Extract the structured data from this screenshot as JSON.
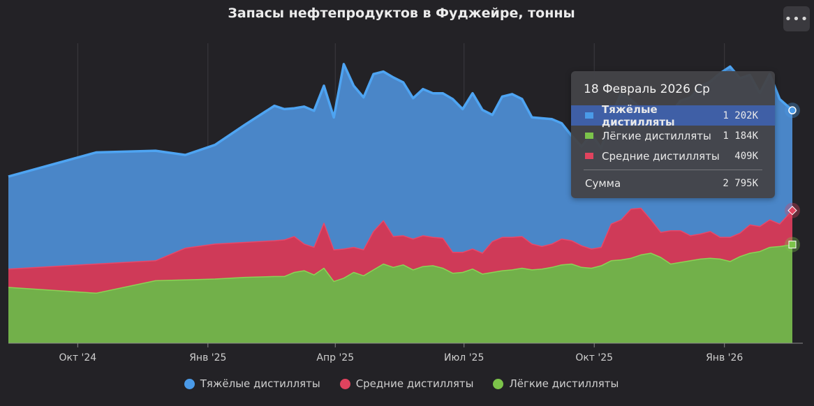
{
  "title": "Запасы нефтепродуктов в Фуджейре, тонны",
  "menu_icon": "more-icon",
  "chart_data": {
    "type": "area",
    "stacked": true,
    "title": "Запасы нефтепродуктов в Фуджейре, тонны",
    "unit": "тонны",
    "x_ticks": [
      "Окт '24",
      "Янв '25",
      "Апр '25",
      "Июл '25",
      "Окт '25",
      "Янв '26"
    ],
    "x_tick_dates": [
      "2024-10-01",
      "2025-01-01",
      "2025-04-01",
      "2025-07-01",
      "2025-10-01",
      "2026-01-01"
    ],
    "xlim": [
      "2024-08-13",
      "2026-02-18"
    ],
    "ylim": [
      0,
      3600
    ],
    "grid": "vertical",
    "legend_position": "bottom",
    "x": [
      "2024-08-13",
      "2024-10-14",
      "2024-11-25",
      "2024-12-16",
      "2025-01-06",
      "2025-01-27",
      "2025-02-17",
      "2025-02-24",
      "2025-03-03",
      "2025-03-10",
      "2025-03-17",
      "2025-03-24",
      "2025-03-31",
      "2025-04-07",
      "2025-04-14",
      "2025-04-21",
      "2025-04-28",
      "2025-05-05",
      "2025-05-12",
      "2025-05-19",
      "2025-05-26",
      "2025-06-02",
      "2025-06-09",
      "2025-06-16",
      "2025-06-23",
      "2025-06-30",
      "2025-07-07",
      "2025-07-14",
      "2025-07-21",
      "2025-07-28",
      "2025-08-04",
      "2025-08-11",
      "2025-08-18",
      "2025-08-25",
      "2025-09-01",
      "2025-09-08",
      "2025-09-15",
      "2025-09-22",
      "2025-09-29",
      "2025-10-06",
      "2025-10-13",
      "2025-10-20",
      "2025-10-27",
      "2025-11-03",
      "2025-11-10",
      "2025-11-17",
      "2025-11-24",
      "2025-12-01",
      "2025-12-08",
      "2025-12-15",
      "2025-12-22",
      "2025-12-29",
      "2026-01-05",
      "2026-01-12",
      "2026-01-19",
      "2026-01-26",
      "2026-02-02",
      "2026-02-09",
      "2026-02-18"
    ],
    "series": [
      {
        "name": "Лёгкие дистилляты",
        "color": "#7cc34a",
        "values": [
          670,
          600,
          750,
          760,
          770,
          790,
          800,
          800,
          850,
          870,
          820,
          900,
          740,
          780,
          850,
          810,
          880,
          950,
          910,
          940,
          880,
          920,
          930,
          900,
          840,
          850,
          890,
          830,
          850,
          870,
          880,
          900,
          880,
          890,
          910,
          940,
          950,
          910,
          900,
          930,
          990,
          1000,
          1020,
          1060,
          1080,
          1030,
          950,
          970,
          990,
          1010,
          1020,
          1010,
          980,
          1040,
          1080,
          1100,
          1150,
          1160,
          1184
        ]
      },
      {
        "name": "Средние дистилляты",
        "color": "#e0435e",
        "values": [
          220,
          350,
          240,
          380,
          420,
          420,
          430,
          440,
          430,
          320,
          330,
          540,
          380,
          350,
          300,
          310,
          460,
          520,
          370,
          350,
          370,
          370,
          340,
          360,
          250,
          240,
          240,
          250,
          370,
          400,
          390,
          380,
          310,
          270,
          280,
          310,
          280,
          260,
          230,
          220,
          440,
          480,
          590,
          560,
          400,
          300,
          400,
          380,
          300,
          300,
          320,
          260,
          290,
          280,
          340,
          300,
          330,
          270,
          409
        ]
      },
      {
        "name": "Тяжёлые дистилляты",
        "color": "#4a8dd0",
        "values": [
          1110,
          1340,
          1320,
          1120,
          1190,
          1410,
          1620,
          1570,
          1540,
          1650,
          1640,
          1650,
          1590,
          2220,
          1940,
          1830,
          1890,
          1790,
          1910,
          1840,
          1690,
          1760,
          1730,
          1740,
          1840,
          1720,
          1870,
          1720,
          1520,
          1690,
          1720,
          1650,
          1520,
          1540,
          1500,
          1390,
          1260,
          1190,
          1380,
          1190,
          1300,
          1520,
          1310,
          1200,
          1250,
          1310,
          1410,
          1560,
          1660,
          1770,
          1800,
          1970,
          2050,
          1860,
          1800,
          1600,
          1750,
          1500,
          1202
        ]
      }
    ]
  },
  "tooltip": {
    "date": "18 Февраль 2026 Ср",
    "rows": [
      {
        "label": "Тяжёлые дистилляты",
        "value": "1 202K",
        "color": "#4a8dd0",
        "highlighted": true
      },
      {
        "label": "Лёгкие дистилляты",
        "value": "1 184K",
        "color": "#7cc34a",
        "highlighted": false
      },
      {
        "label": "Средние дистилляты",
        "value": "409K",
        "color": "#e0435e",
        "highlighted": false
      }
    ],
    "sum_label": "Сумма",
    "sum_value": "2 795K"
  },
  "legend": [
    {
      "label": "Тяжёлые дистилляты",
      "color": "#4a9ae8"
    },
    {
      "label": "Средние дистилляты",
      "color": "#e0435e"
    },
    {
      "label": "Лёгкие дистилляты",
      "color": "#7cc34a"
    }
  ]
}
